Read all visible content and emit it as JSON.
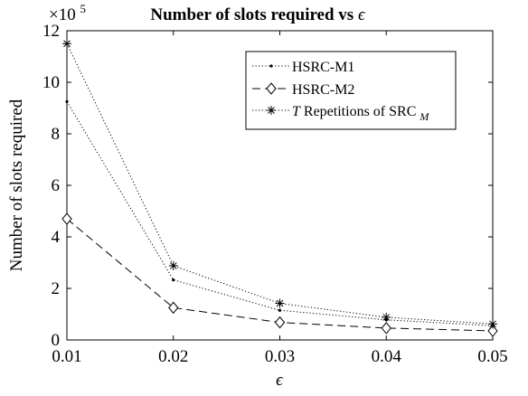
{
  "chart_data": {
    "type": "line",
    "title": "Number of slots required vs",
    "title_symbol": "ϵ",
    "xlabel": "ϵ",
    "ylabel": "Number of slots required",
    "y_exponent_base": "×10",
    "y_exponent_power": "5",
    "x": [
      0.01,
      0.02,
      0.03,
      0.04,
      0.05
    ],
    "xlim": [
      0.01,
      0.05
    ],
    "ylim": [
      0,
      12
    ],
    "x_ticks": [
      "0.01",
      "0.02",
      "0.03",
      "0.04",
      "0.05"
    ],
    "y_ticks": [
      "0",
      "2",
      "4",
      "6",
      "8",
      "10",
      "12"
    ],
    "legend_position": "top-right",
    "grid": false,
    "series": [
      {
        "name": "HSRC-M1",
        "values": [
          9.25,
          2.33,
          1.15,
          0.78,
          0.55
        ],
        "line_style": "dotted",
        "marker": "dot",
        "color": "#000000"
      },
      {
        "name": "HSRC-M2",
        "values": [
          4.7,
          1.25,
          0.68,
          0.46,
          0.35
        ],
        "line_style": "dashed",
        "marker": "diamond",
        "color": "#000000"
      },
      {
        "name_italic": "T",
        "name_main": " Repetitions of SRC",
        "name_sub": "M",
        "values": [
          11.5,
          2.88,
          1.42,
          0.88,
          0.62
        ],
        "line_style": "dotted",
        "marker": "asterisk",
        "color": "#000000"
      }
    ]
  }
}
